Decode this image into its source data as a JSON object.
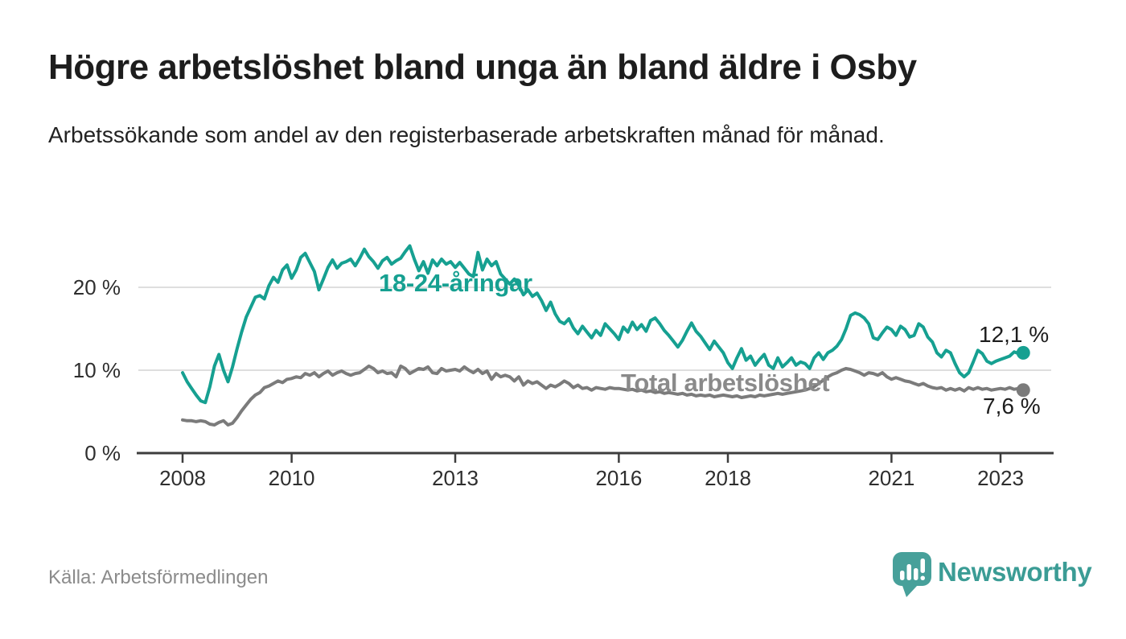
{
  "header": {
    "title": "Högre arbetslöshet bland unga än bland äldre i Osby",
    "subtitle": "Arbetssökande som andel av den registerbaserade arbetskraften månad för månad."
  },
  "footer": {
    "source": "Källa: Arbetsförmedlingen",
    "brand": "Newsworthy",
    "brand_text_color": "#3b9c95",
    "brand_icon_color": "#47a09a"
  },
  "chart_data": {
    "type": "line",
    "x_unit": "month",
    "x_start": {
      "year": 2008,
      "month": 1
    },
    "x_end": {
      "year": 2023,
      "month": 6
    },
    "x_ticks": [
      {
        "year": 2008,
        "label": "2008"
      },
      {
        "year": 2010,
        "label": "2010"
      },
      {
        "year": 2013,
        "label": "2013"
      },
      {
        "year": 2016,
        "label": "2016"
      },
      {
        "year": 2018,
        "label": "2018"
      },
      {
        "year": 2021,
        "label": "2021"
      },
      {
        "year": 2023,
        "label": "2023"
      }
    ],
    "y_ticks": [
      {
        "value": 0,
        "label": "0 %"
      },
      {
        "value": 10,
        "label": "10 %"
      },
      {
        "value": 20,
        "label": "20 %"
      }
    ],
    "y_domain": [
      0,
      25.5
    ],
    "grid": "horizontal",
    "legend_position": "inline-labels",
    "colors": {
      "grid": "#dedede",
      "axis": "#3d3d3d",
      "tick_text": "#2e2e2e"
    },
    "series": [
      {
        "id": "young",
        "label": "18-24-åringar",
        "end_label": "12,1 %",
        "end_value": 12.1,
        "color": "#16a091",
        "label_color": "#16a091",
        "values": [
          9.7,
          8.6,
          7.8,
          7.0,
          6.3,
          6.1,
          8.0,
          10.5,
          11.9,
          10.0,
          8.6,
          10.4,
          12.6,
          14.6,
          16.4,
          17.6,
          18.8,
          19.0,
          18.6,
          20.2,
          21.2,
          20.6,
          22.1,
          22.7,
          21.1,
          22.1,
          23.6,
          24.1,
          23.0,
          21.9,
          19.7,
          21.0,
          22.4,
          23.3,
          22.3,
          22.9,
          23.1,
          23.4,
          22.6,
          23.5,
          24.6,
          23.7,
          23.1,
          22.3,
          23.2,
          23.6,
          22.8,
          23.2,
          23.5,
          24.3,
          25.0,
          23.4,
          22.0,
          23.1,
          21.7,
          23.3,
          22.6,
          23.4,
          22.8,
          23.1,
          22.4,
          23.0,
          22.3,
          21.6,
          21.3,
          24.2,
          22.1,
          23.4,
          22.6,
          23.1,
          21.6,
          21.0,
          20.4,
          21.0,
          20.2,
          19.1,
          19.7,
          18.9,
          19.3,
          18.4,
          17.2,
          18.2,
          16.8,
          15.9,
          15.6,
          16.2,
          15.1,
          14.4,
          15.3,
          14.6,
          13.9,
          14.8,
          14.2,
          15.6,
          15.0,
          14.4,
          13.7,
          15.2,
          14.6,
          15.8,
          14.9,
          15.5,
          14.7,
          16.0,
          16.3,
          15.6,
          14.8,
          14.2,
          13.5,
          12.8,
          13.6,
          14.7,
          15.7,
          14.7,
          14.1,
          13.3,
          12.5,
          13.5,
          12.8,
          12.1,
          10.9,
          10.2,
          11.5,
          12.6,
          11.2,
          11.7,
          10.6,
          11.3,
          11.9,
          10.6,
          10.2,
          11.5,
          10.4,
          10.9,
          11.5,
          10.6,
          11.0,
          10.8,
          10.2,
          11.5,
          12.1,
          11.3,
          12.1,
          12.4,
          12.9,
          13.7,
          15.0,
          16.6,
          16.9,
          16.7,
          16.3,
          15.6,
          13.9,
          13.7,
          14.5,
          15.2,
          14.9,
          14.2,
          15.3,
          14.9,
          14.0,
          14.2,
          15.6,
          15.2,
          14.0,
          13.4,
          12.1,
          11.6,
          12.4,
          12.1,
          10.8,
          9.7,
          9.2,
          9.7,
          11.0,
          12.4,
          12.0,
          11.1,
          10.8,
          11.1,
          11.3,
          11.5,
          11.7,
          12.2,
          12.0,
          12.1
        ]
      },
      {
        "id": "total",
        "label": "Total arbetslöshet",
        "end_label": "7,6 %",
        "end_value": 7.6,
        "color": "#7b7b7b",
        "label_color": "#8a8a8a",
        "values": [
          4.0,
          3.9,
          3.9,
          3.8,
          3.9,
          3.8,
          3.5,
          3.4,
          3.7,
          3.9,
          3.4,
          3.6,
          4.3,
          5.1,
          5.8,
          6.5,
          7.0,
          7.3,
          7.9,
          8.1,
          8.4,
          8.7,
          8.5,
          8.9,
          9.0,
          9.2,
          9.1,
          9.6,
          9.4,
          9.7,
          9.2,
          9.6,
          9.9,
          9.4,
          9.7,
          9.9,
          9.6,
          9.4,
          9.6,
          9.7,
          10.1,
          10.5,
          10.2,
          9.7,
          9.9,
          9.6,
          9.7,
          9.2,
          10.5,
          10.2,
          9.6,
          9.9,
          10.2,
          10.1,
          10.4,
          9.7,
          9.6,
          10.2,
          9.9,
          10.0,
          10.1,
          9.9,
          10.4,
          10.0,
          9.7,
          10.1,
          9.6,
          9.9,
          8.9,
          9.6,
          9.2,
          9.4,
          9.2,
          8.7,
          9.2,
          8.2,
          8.7,
          8.4,
          8.6,
          8.2,
          7.8,
          8.2,
          8.0,
          8.3,
          8.7,
          8.4,
          7.9,
          8.2,
          7.8,
          7.9,
          7.6,
          7.9,
          7.8,
          7.7,
          7.9,
          7.8,
          7.8,
          7.7,
          7.6,
          7.7,
          7.5,
          7.6,
          7.4,
          7.5,
          7.3,
          7.4,
          7.2,
          7.3,
          7.2,
          7.1,
          7.2,
          7.0,
          7.1,
          6.9,
          7.0,
          6.9,
          7.0,
          6.8,
          6.9,
          7.0,
          6.9,
          6.8,
          6.9,
          6.7,
          6.8,
          6.9,
          6.8,
          7.0,
          6.9,
          7.0,
          7.1,
          7.2,
          7.1,
          7.2,
          7.3,
          7.4,
          7.5,
          7.6,
          7.8,
          8.0,
          8.4,
          8.8,
          9.2,
          9.5,
          9.7,
          10.0,
          10.2,
          10.1,
          9.9,
          9.7,
          9.4,
          9.7,
          9.6,
          9.4,
          9.7,
          9.2,
          8.9,
          9.1,
          8.9,
          8.7,
          8.6,
          8.4,
          8.2,
          8.4,
          8.1,
          7.9,
          7.8,
          7.9,
          7.6,
          7.8,
          7.6,
          7.8,
          7.5,
          7.9,
          7.7,
          7.9,
          7.7,
          7.8,
          7.6,
          7.7,
          7.8,
          7.7,
          7.9,
          7.7,
          7.8,
          7.6
        ]
      }
    ]
  }
}
